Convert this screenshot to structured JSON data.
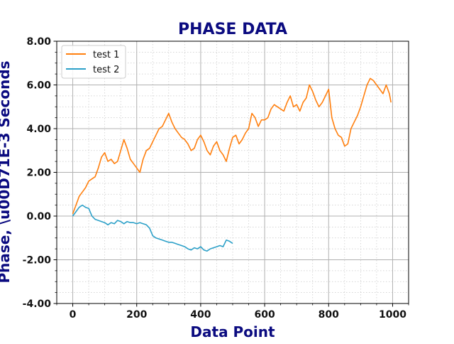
{
  "colors": {
    "title": "#0b0b80",
    "axis_label": "#0b0b80",
    "grid_major": "#b0b0b0",
    "grid_minor": "#c8c8c8",
    "series_1": "#ff7f0e",
    "series_2": "#2ca0c8"
  },
  "chart_data": {
    "type": "line",
    "title": "PHASE DATA",
    "xlabel": "Data Point",
    "ylabel": "Phase, \\u00D71E-3 Seconds",
    "xlim": [
      -50,
      1050
    ],
    "ylim": [
      -4,
      8
    ],
    "xticks": [
      0,
      200,
      400,
      600,
      800,
      1000
    ],
    "xtick_labels": [
      "0",
      "200",
      "400",
      "600",
      "800",
      "1000"
    ],
    "yticks": [
      -4,
      -2,
      0,
      2,
      4,
      6,
      8
    ],
    "ytick_labels": [
      "-4.00",
      "-2.00",
      "0.00",
      "2.00",
      "4.00",
      "6.00",
      "8.00"
    ],
    "grid": "major and minor",
    "legend_position": "upper-left",
    "series": [
      {
        "name": "test 1",
        "color": "#ff7f0e",
        "x": [
          0,
          10,
          20,
          30,
          40,
          50,
          60,
          70,
          80,
          90,
          100,
          110,
          120,
          130,
          140,
          150,
          160,
          170,
          180,
          190,
          200,
          210,
          220,
          230,
          240,
          250,
          260,
          270,
          280,
          290,
          300,
          310,
          320,
          330,
          340,
          350,
          360,
          370,
          380,
          390,
          400,
          410,
          420,
          430,
          440,
          450,
          460,
          470,
          480,
          490,
          500,
          510,
          520,
          530,
          540,
          550,
          560,
          570,
          580,
          590,
          600,
          610,
          620,
          630,
          640,
          650,
          660,
          670,
          680,
          690,
          700,
          710,
          720,
          730,
          740,
          750,
          760,
          770,
          780,
          790,
          800,
          810,
          820,
          830,
          840,
          850,
          860,
          870,
          880,
          890,
          900,
          910,
          920,
          930,
          940,
          950,
          960,
          970,
          980,
          990,
          995
        ],
        "y": [
          0.1,
          0.5,
          0.9,
          1.1,
          1.3,
          1.6,
          1.7,
          1.8,
          2.2,
          2.7,
          2.9,
          2.5,
          2.6,
          2.4,
          2.5,
          3.0,
          3.5,
          3.1,
          2.6,
          2.4,
          2.2,
          2.0,
          2.6,
          3.0,
          3.1,
          3.4,
          3.7,
          4.0,
          4.1,
          4.4,
          4.7,
          4.3,
          4.0,
          3.8,
          3.6,
          3.5,
          3.3,
          3.0,
          3.1,
          3.5,
          3.7,
          3.4,
          3.0,
          2.8,
          3.2,
          3.4,
          3.0,
          2.8,
          2.5,
          3.1,
          3.6,
          3.7,
          3.3,
          3.5,
          3.8,
          4.0,
          4.7,
          4.5,
          4.1,
          4.4,
          4.4,
          4.5,
          4.9,
          5.1,
          5.0,
          4.9,
          4.8,
          5.2,
          5.5,
          5.0,
          5.1,
          4.8,
          5.2,
          5.4,
          6.0,
          5.7,
          5.3,
          5.0,
          5.2,
          5.5,
          5.8,
          4.5,
          4.0,
          3.7,
          3.6,
          3.2,
          3.3,
          4.0,
          4.3,
          4.6,
          5.0,
          5.5,
          6.0,
          6.3,
          6.2,
          6.0,
          5.8,
          5.6,
          6.0,
          5.6,
          5.2
        ]
      },
      {
        "name": "test 2",
        "color": "#2ca0c8",
        "x": [
          0,
          10,
          20,
          30,
          40,
          50,
          60,
          70,
          80,
          90,
          100,
          110,
          120,
          130,
          140,
          150,
          160,
          170,
          180,
          190,
          200,
          210,
          220,
          230,
          240,
          250,
          260,
          270,
          280,
          290,
          300,
          310,
          320,
          330,
          340,
          350,
          360,
          370,
          380,
          390,
          400,
          410,
          420,
          430,
          440,
          450,
          460,
          470,
          480,
          490,
          500
        ],
        "y": [
          0.0,
          0.2,
          0.4,
          0.5,
          0.4,
          0.35,
          0.0,
          -0.15,
          -0.2,
          -0.25,
          -0.3,
          -0.4,
          -0.3,
          -0.35,
          -0.2,
          -0.25,
          -0.35,
          -0.25,
          -0.3,
          -0.3,
          -0.35,
          -0.3,
          -0.35,
          -0.4,
          -0.55,
          -0.9,
          -1.0,
          -1.05,
          -1.1,
          -1.15,
          -1.2,
          -1.2,
          -1.25,
          -1.3,
          -1.35,
          -1.4,
          -1.5,
          -1.55,
          -1.45,
          -1.5,
          -1.4,
          -1.55,
          -1.6,
          -1.5,
          -1.45,
          -1.4,
          -1.35,
          -1.4,
          -1.1,
          -1.15,
          -1.25
        ]
      }
    ]
  }
}
